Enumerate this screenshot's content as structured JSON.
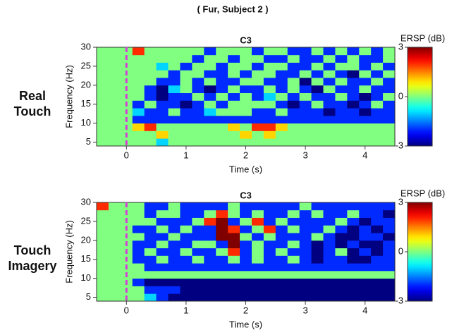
{
  "title": "( Fur, Subject 2 )",
  "chart_data": [
    {
      "type": "heatmap",
      "title": "C3",
      "row_label": "Real Touch",
      "xlabel": "Time (s)",
      "ylabel": "Frequency (Hz)",
      "xlim": [
        -0.5,
        4.5
      ],
      "xticks": [
        0,
        1,
        2,
        3,
        4
      ],
      "ylim": [
        4,
        30
      ],
      "yticks": [
        5,
        10,
        15,
        20,
        25,
        30
      ],
      "event_x": 0,
      "event_color": "#d63fd6",
      "colorbar_label": "ERSP (dB)",
      "clim": [
        -3,
        3
      ],
      "cticks": [
        -3,
        0,
        3
      ],
      "colormap": "jet",
      "x": [
        -0.4,
        -0.2,
        0.0,
        0.2,
        0.4,
        0.6,
        0.8,
        1.0,
        1.2,
        1.4,
        1.6,
        1.8,
        2.0,
        2.2,
        2.4,
        2.6,
        2.8,
        3.0,
        3.2,
        3.4,
        3.6,
        3.8,
        4.0,
        4.2,
        4.4
      ],
      "y": [
        5,
        7,
        9,
        11,
        13,
        15,
        17,
        19,
        21,
        23,
        25,
        27,
        29
      ],
      "z": [
        [
          0,
          0,
          0,
          0,
          0,
          -1,
          0,
          0,
          0,
          0,
          0,
          0,
          0,
          0,
          0,
          0,
          0,
          0,
          0,
          0,
          0,
          0,
          0,
          0,
          0
        ],
        [
          0,
          0,
          0,
          0,
          0,
          1,
          0,
          0,
          0,
          0,
          0,
          0,
          1,
          0,
          1,
          0,
          0,
          0,
          0,
          0,
          0,
          0,
          0,
          0,
          0
        ],
        [
          0,
          0,
          0,
          1,
          2,
          0,
          0,
          0,
          0,
          0,
          0,
          1,
          0,
          2,
          2,
          1,
          0,
          0,
          0,
          0,
          0,
          0,
          0,
          0,
          0
        ],
        [
          0,
          0,
          0,
          -2,
          -2,
          -2,
          -2,
          -2,
          -2,
          -2,
          -2,
          -2,
          -2,
          -2,
          -2,
          -2,
          -2,
          -2,
          -2,
          -2,
          -2,
          -2,
          -2,
          -2,
          -2
        ],
        [
          0,
          0,
          0,
          -1,
          -2,
          -2,
          0,
          -2,
          -2,
          -1,
          0,
          0,
          0,
          -2,
          -2,
          0,
          -2,
          -2,
          -2,
          -3,
          -2,
          -2,
          -3,
          -2,
          -2
        ],
        [
          0,
          0,
          0,
          -2,
          0,
          -2,
          -2,
          -3,
          -2,
          0,
          -2,
          0,
          0,
          0,
          0,
          -2,
          -3,
          -2,
          0,
          -2,
          -2,
          -3,
          -2,
          0,
          -2
        ],
        [
          0,
          0,
          0,
          0,
          -2,
          -3,
          -2,
          -2,
          0,
          -2,
          0,
          -2,
          0,
          -2,
          -1,
          0,
          -2,
          0,
          -2,
          -2,
          0,
          -2,
          -3,
          -2,
          0
        ],
        [
          0,
          0,
          0,
          0,
          -2,
          -3,
          -1,
          0,
          -2,
          -3,
          -2,
          0,
          -2,
          -2,
          0,
          -2,
          0,
          -2,
          -3,
          0,
          -2,
          -2,
          0,
          -2,
          -2
        ],
        [
          0,
          0,
          0,
          0,
          0,
          -2,
          -2,
          0,
          -2,
          0,
          -2,
          -2,
          0,
          0,
          -2,
          -2,
          0,
          -3,
          0,
          -2,
          0,
          -2,
          -2,
          0,
          -2
        ],
        [
          0,
          0,
          0,
          0,
          0,
          0,
          -2,
          0,
          0,
          -2,
          -2,
          0,
          -2,
          0,
          0,
          -2,
          -2,
          0,
          -2,
          0,
          -2,
          -3,
          0,
          -2,
          0
        ],
        [
          0,
          0,
          0,
          0,
          0,
          -1,
          0,
          -2,
          0,
          0,
          -2,
          0,
          0,
          -2,
          0,
          0,
          -2,
          -2,
          0,
          -2,
          0,
          0,
          -2,
          0,
          -2
        ],
        [
          0,
          0,
          0,
          0,
          0,
          0,
          0,
          0,
          -2,
          0,
          0,
          -2,
          0,
          0,
          -2,
          -2,
          0,
          -2,
          -2,
          0,
          -2,
          0,
          -2,
          -2,
          0
        ],
        [
          0,
          0,
          0,
          2,
          0,
          0,
          0,
          0,
          0,
          -2,
          0,
          0,
          0,
          -2,
          0,
          0,
          -2,
          -2,
          0,
          -2,
          0,
          -2,
          0,
          -2,
          0
        ]
      ]
    },
    {
      "type": "heatmap",
      "title": "C3",
      "row_label": "Touch Imagery",
      "xlabel": "Time (s)",
      "ylabel": "Frequency (Hz)",
      "xlim": [
        -0.5,
        4.5
      ],
      "xticks": [
        0,
        1,
        2,
        3,
        4
      ],
      "ylim": [
        4,
        30
      ],
      "yticks": [
        5,
        10,
        15,
        20,
        25,
        30
      ],
      "event_x": 0,
      "event_color": "#d63fd6",
      "colorbar_label": "ERSP (dB)",
      "clim": [
        -3,
        3
      ],
      "cticks": [
        -3,
        0,
        3
      ],
      "colormap": "jet",
      "x": [
        -0.4,
        -0.2,
        0.0,
        0.2,
        0.4,
        0.6,
        0.8,
        1.0,
        1.2,
        1.4,
        1.6,
        1.8,
        2.0,
        2.2,
        2.4,
        2.6,
        2.8,
        3.0,
        3.2,
        3.4,
        3.6,
        3.8,
        4.0,
        4.2,
        4.4
      ],
      "y": [
        5,
        7,
        9,
        11,
        13,
        15,
        17,
        19,
        21,
        23,
        25,
        27,
        29
      ],
      "z": [
        [
          0,
          0,
          0,
          0,
          -1,
          -2,
          -3,
          -3,
          -3,
          -3,
          -3,
          -3,
          -3,
          -3,
          -3,
          -3,
          -3,
          -3,
          -3,
          -3,
          -3,
          -3,
          -3,
          -3,
          -3
        ],
        [
          0,
          0,
          0,
          0,
          -2,
          -2,
          -2,
          -3,
          -3,
          -3,
          -3,
          -3,
          -3,
          -3,
          -3,
          -3,
          -3,
          -3,
          -3,
          -3,
          -3,
          -3,
          -3,
          -3,
          -3
        ],
        [
          0,
          0,
          0,
          -2,
          -3,
          -3,
          -3,
          -3,
          -3,
          -3,
          -3,
          -3,
          -3,
          -3,
          -3,
          -3,
          -3,
          -3,
          -3,
          -3,
          -3,
          -3,
          -3,
          -3,
          -3
        ],
        [
          0,
          0,
          0,
          0,
          0,
          0,
          0,
          0,
          0,
          0,
          0,
          0,
          0,
          0,
          0,
          0,
          0,
          0,
          0,
          0,
          0,
          0,
          0,
          0,
          0
        ],
        [
          0,
          0,
          0,
          0,
          -2,
          -2,
          -2,
          -2,
          -2,
          -2,
          -2,
          -2,
          -2,
          -2,
          -2,
          -2,
          -2,
          -2,
          -2,
          -2,
          -2,
          -2,
          -2,
          -2,
          -2
        ],
        [
          0,
          0,
          0,
          -2,
          -2,
          0,
          -2,
          -2,
          0,
          -2,
          -2,
          0,
          -2,
          0,
          -2,
          -2,
          0,
          -2,
          -3,
          -2,
          -2,
          -3,
          -3,
          -2,
          -2
        ],
        [
          0,
          0,
          0,
          -2,
          0,
          -2,
          -2,
          0,
          -2,
          -2,
          0,
          2,
          -2,
          0,
          -2,
          0,
          -2,
          -2,
          -3,
          -2,
          0,
          -3,
          -2,
          -3,
          -2
        ],
        [
          0,
          0,
          0,
          -2,
          -2,
          0,
          -2,
          -2,
          0,
          0,
          -2,
          3,
          -2,
          0,
          -2,
          -2,
          0,
          -2,
          -3,
          -2,
          -3,
          -2,
          -3,
          -3,
          -2
        ],
        [
          0,
          0,
          0,
          0,
          -2,
          -2,
          0,
          -2,
          -2,
          -2,
          3,
          3,
          0,
          -2,
          0,
          -2,
          -2,
          -2,
          0,
          -2,
          -3,
          -3,
          -2,
          -2,
          -3
        ],
        [
          0,
          0,
          0,
          -2,
          -2,
          0,
          -2,
          0,
          -2,
          -2,
          3,
          2,
          -2,
          0,
          2,
          -2,
          0,
          -2,
          -2,
          0,
          -2,
          -3,
          -2,
          -3,
          -2
        ],
        [
          0,
          0,
          0,
          0,
          0,
          -2,
          -2,
          -2,
          0,
          2,
          3,
          -2,
          0,
          2,
          -2,
          0,
          -2,
          -2,
          -2,
          -2,
          0,
          -2,
          -3,
          -2,
          -2
        ],
        [
          0,
          0,
          0,
          0,
          -2,
          0,
          0,
          -2,
          -2,
          0,
          2,
          0,
          -2,
          0,
          -2,
          -2,
          0,
          -2,
          0,
          -2,
          -2,
          0,
          -2,
          -2,
          -3
        ],
        [
          2,
          0,
          0,
          0,
          -2,
          -2,
          0,
          -2,
          -2,
          -2,
          -2,
          0,
          -2,
          -2,
          -2,
          -2,
          -2,
          0,
          -2,
          -2,
          -2,
          -2,
          -2,
          -2,
          -2
        ]
      ]
    }
  ]
}
